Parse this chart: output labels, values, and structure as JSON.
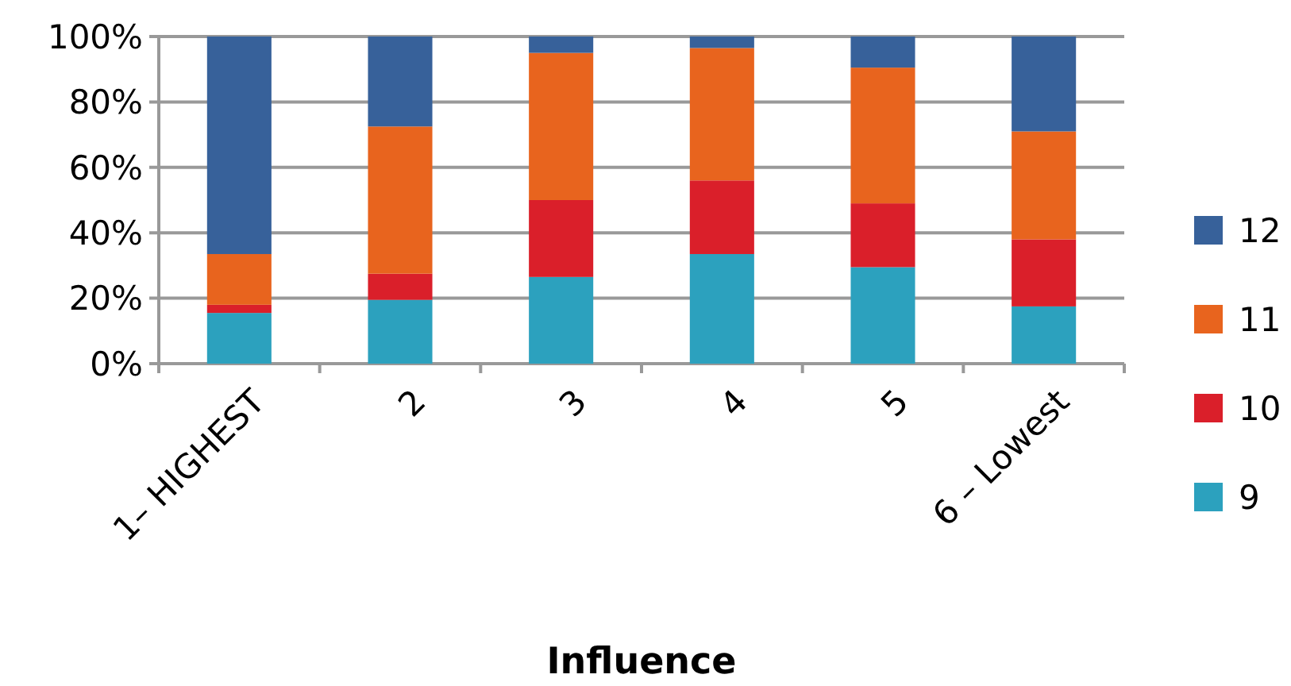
{
  "chart_data": {
    "type": "bar",
    "stacked": true,
    "xlabel": "Influence",
    "categories": [
      "1– HIGHEST",
      "2",
      "3",
      "4",
      "5",
      "6 – Lowest"
    ],
    "series": [
      {
        "name": "9",
        "color": "#2ca1be",
        "values": [
          15.5,
          19.5,
          26.5,
          33.5,
          29.5,
          17.5
        ]
      },
      {
        "name": "10",
        "color": "#da1f2a",
        "values": [
          2.5,
          8,
          23.5,
          22.5,
          19.5,
          20.5
        ]
      },
      {
        "name": "11",
        "color": "#e8641e",
        "values": [
          15.5,
          45,
          45,
          40.5,
          41.5,
          33
        ]
      },
      {
        "name": "12",
        "color": "#37619a",
        "values": [
          66.5,
          27.5,
          5,
          3.5,
          9.5,
          29
        ]
      }
    ],
    "ylim": [
      0,
      100
    ],
    "yticks": [
      {
        "value": 0,
        "label": "0%"
      },
      {
        "value": 20,
        "label": "20%"
      },
      {
        "value": 40,
        "label": "40%"
      },
      {
        "value": 60,
        "label": "60%"
      },
      {
        "value": 80,
        "label": "80%"
      },
      {
        "value": 100,
        "label": "100%"
      }
    ],
    "grid": "y",
    "legend": "right"
  }
}
